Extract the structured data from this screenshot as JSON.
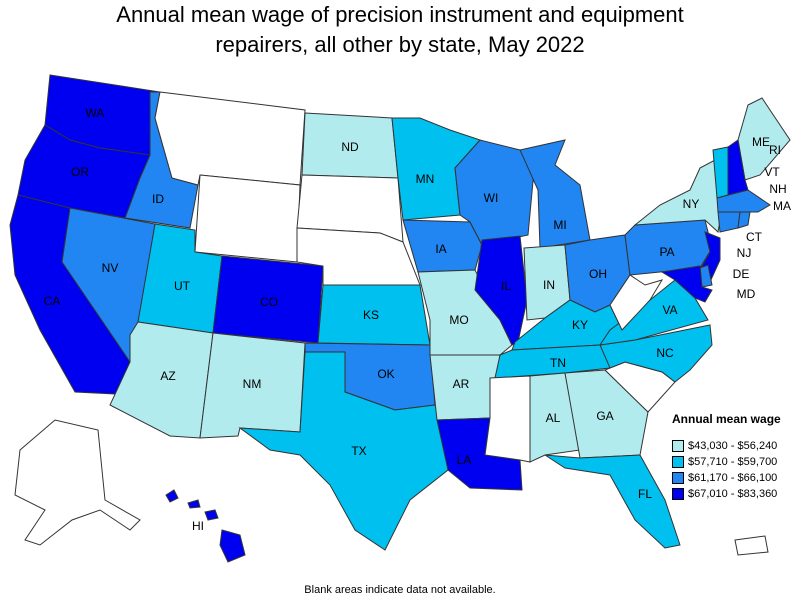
{
  "title_line1": "Annual mean wage of precision instrument and equipment",
  "title_line2": "repairers, all other by state, May 2022",
  "legend": {
    "title": "Annual mean wage",
    "items": [
      {
        "label": "$43,030 - $56,240",
        "color": "#b2ebee"
      },
      {
        "label": "$57,710 - $59,700",
        "color": "#00c0f0"
      },
      {
        "label": "$61,170 - $66,100",
        "color": "#2185f2"
      },
      {
        "label": "$67,010 - $83,360",
        "color": "#0000f0"
      }
    ]
  },
  "footnote": "Blank areas indicate data not available.",
  "states": {
    "WA": {
      "label": "WA",
      "bin": 4
    },
    "OR": {
      "label": "OR",
      "bin": 4
    },
    "CA": {
      "label": "CA",
      "bin": 4
    },
    "ID": {
      "label": "ID",
      "bin": 3
    },
    "NV": {
      "label": "NV",
      "bin": 3
    },
    "MT": {
      "label": "",
      "bin": 0
    },
    "WY": {
      "label": "",
      "bin": 0
    },
    "UT": {
      "label": "UT",
      "bin": 2
    },
    "AZ": {
      "label": "AZ",
      "bin": 1
    },
    "CO": {
      "label": "CO",
      "bin": 4
    },
    "NM": {
      "label": "NM",
      "bin": 1
    },
    "ND": {
      "label": "ND",
      "bin": 1
    },
    "SD": {
      "label": "",
      "bin": 0
    },
    "NE": {
      "label": "",
      "bin": 0
    },
    "KS": {
      "label": "KS",
      "bin": 2
    },
    "OK": {
      "label": "OK",
      "bin": 3
    },
    "TX": {
      "label": "TX",
      "bin": 2
    },
    "MN": {
      "label": "MN",
      "bin": 2
    },
    "IA": {
      "label": "IA",
      "bin": 3
    },
    "MO": {
      "label": "MO",
      "bin": 1
    },
    "AR": {
      "label": "AR",
      "bin": 1
    },
    "LA": {
      "label": "LA",
      "bin": 4
    },
    "WI": {
      "label": "WI",
      "bin": 3
    },
    "IL": {
      "label": "IL",
      "bin": 4
    },
    "MI": {
      "label": "MI",
      "bin": 3
    },
    "IN": {
      "label": "IN",
      "bin": 1
    },
    "OH": {
      "label": "OH",
      "bin": 3
    },
    "KY": {
      "label": "KY",
      "bin": 2
    },
    "TN": {
      "label": "TN",
      "bin": 2
    },
    "MS": {
      "label": "",
      "bin": 0
    },
    "AL": {
      "label": "AL",
      "bin": 1
    },
    "GA": {
      "label": "GA",
      "bin": 1
    },
    "FL": {
      "label": "FL",
      "bin": 2
    },
    "SC": {
      "label": "",
      "bin": 0
    },
    "NC": {
      "label": "NC",
      "bin": 2
    },
    "VA": {
      "label": "VA",
      "bin": 2
    },
    "WV": {
      "label": "",
      "bin": 0
    },
    "PA": {
      "label": "PA",
      "bin": 3
    },
    "NY": {
      "label": "NY",
      "bin": 1
    },
    "ME": {
      "label": "ME",
      "bin": 1
    },
    "VT": {
      "label": "VT",
      "bin": 2
    },
    "NH": {
      "label": "NH",
      "bin": 4
    },
    "MA": {
      "label": "MA",
      "bin": 3
    },
    "CT": {
      "label": "CT",
      "bin": 3
    },
    "RI": {
      "label": "RI",
      "bin": 3
    },
    "NJ": {
      "label": "NJ",
      "bin": 4
    },
    "DE": {
      "label": "DE",
      "bin": 3
    },
    "MD": {
      "label": "MD",
      "bin": 4
    },
    "AK": {
      "label": "",
      "bin": 0
    },
    "HI": {
      "label": "HI",
      "bin": 4
    },
    "PR": {
      "label": "",
      "bin": 0
    }
  }
}
